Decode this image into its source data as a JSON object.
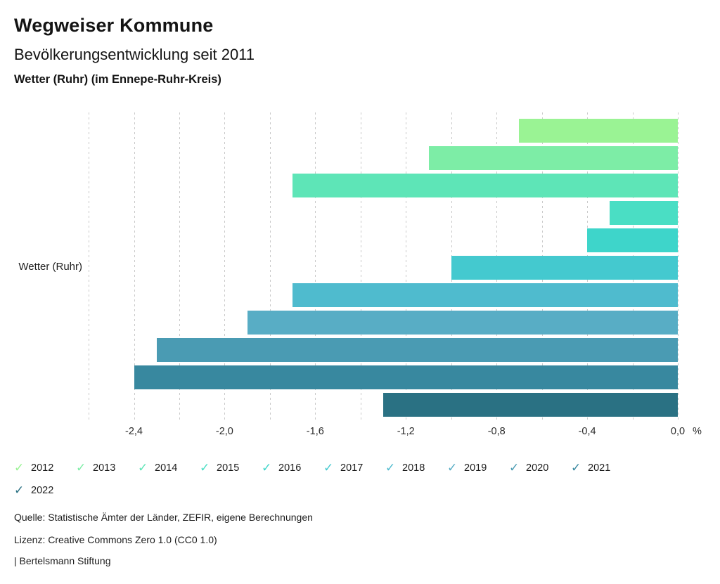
{
  "header": {
    "title": "Wegweiser Kommune",
    "subtitle": "Bevölkerungsentwicklung seit 2011",
    "region": "Wetter (Ruhr) (im Ennepe-Ruhr-Kreis)"
  },
  "chart_data": {
    "type": "bar",
    "orientation": "horizontal",
    "group_label": "Wetter (Ruhr)",
    "unit": "%",
    "xlim": [
      -2.6,
      0.0
    ],
    "grid_step": 0.2,
    "grid_style": "dashed",
    "legend_position": "bottom",
    "xticks": [
      {
        "value": -2.4,
        "label": "-2,4"
      },
      {
        "value": -2.0,
        "label": "-2,0"
      },
      {
        "value": -1.6,
        "label": "-1,6"
      },
      {
        "value": -1.2,
        "label": "-1,2"
      },
      {
        "value": -0.8,
        "label": "-0,8"
      },
      {
        "value": -0.4,
        "label": "-0,4"
      },
      {
        "value": 0.0,
        "label": "0,0"
      }
    ],
    "series": [
      {
        "year": "2012",
        "value": -0.7,
        "color": "#9af394"
      },
      {
        "year": "2013",
        "value": -1.1,
        "color": "#7deda6"
      },
      {
        "year": "2014",
        "value": -1.7,
        "color": "#5ee5b7"
      },
      {
        "year": "2015",
        "value": -0.3,
        "color": "#4adec4"
      },
      {
        "year": "2016",
        "value": -0.4,
        "color": "#3ed5ca"
      },
      {
        "year": "2017",
        "value": -1.0,
        "color": "#44c9cf"
      },
      {
        "year": "2018",
        "value": -1.7,
        "color": "#4fbbce"
      },
      {
        "year": "2019",
        "value": -1.9,
        "color": "#58adc5"
      },
      {
        "year": "2020",
        "value": -2.3,
        "color": "#4a9bb3"
      },
      {
        "year": "2021",
        "value": -2.4,
        "color": "#38889f"
      },
      {
        "year": "2022",
        "value": -1.3,
        "color": "#2a7183"
      }
    ]
  },
  "legend": {
    "check_icon": "✓"
  },
  "footer": {
    "source": "Quelle: Statistische Ämter der Länder, ZEFIR, eigene Berechnungen",
    "license": "Lizenz: Creative Commons Zero 1.0 (CC0 1.0)",
    "attribution": "| Bertelsmann Stiftung"
  }
}
